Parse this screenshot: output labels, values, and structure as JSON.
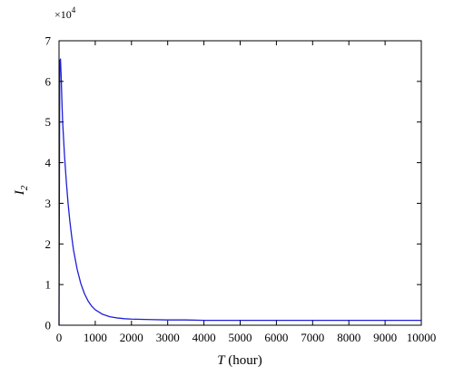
{
  "chart_data": {
    "type": "line",
    "title": "",
    "xlabel": {
      "symbol": "T",
      "unit": " (hour)"
    },
    "ylabel": {
      "symbol": "I",
      "subscript": "2"
    },
    "y_multiplier": {
      "base": "×10",
      "exponent": "4"
    },
    "xlim": [
      0,
      10000
    ],
    "ylim": [
      0,
      7
    ],
    "x_ticks": [
      0,
      1000,
      2000,
      3000,
      4000,
      5000,
      6000,
      7000,
      8000,
      9000,
      10000
    ],
    "x_tick_labels": [
      "0",
      "1000",
      "2000",
      "3000",
      "4000",
      "5000",
      "6000",
      "7000",
      "8000",
      "9000",
      "10000"
    ],
    "y_ticks": [
      0,
      1,
      2,
      3,
      4,
      5,
      6,
      7
    ],
    "y_tick_labels": [
      "0",
      "1",
      "2",
      "3",
      "4",
      "5",
      "6",
      "7"
    ],
    "grid": false,
    "legend": "none",
    "series": [
      {
        "color": "#1f1fd6",
        "x": [
          0,
          20,
          40,
          60,
          80,
          100,
          150,
          200,
          250,
          300,
          350,
          400,
          500,
          600,
          700,
          800,
          900,
          1000,
          1200,
          1400,
          1600,
          1800,
          2000,
          2500,
          3000,
          3500,
          4000,
          5000,
          6000,
          7000,
          8000,
          9000,
          10000
        ],
        "y": [
          0,
          6.5,
          6.55,
          6.1,
          5.5,
          5.0,
          4.2,
          3.55,
          3.0,
          2.55,
          2.18,
          1.85,
          1.38,
          1.03,
          0.78,
          0.6,
          0.47,
          0.38,
          0.27,
          0.21,
          0.18,
          0.16,
          0.15,
          0.14,
          0.13,
          0.13,
          0.12,
          0.12,
          0.12,
          0.12,
          0.12,
          0.12,
          0.12
        ]
      }
    ]
  }
}
